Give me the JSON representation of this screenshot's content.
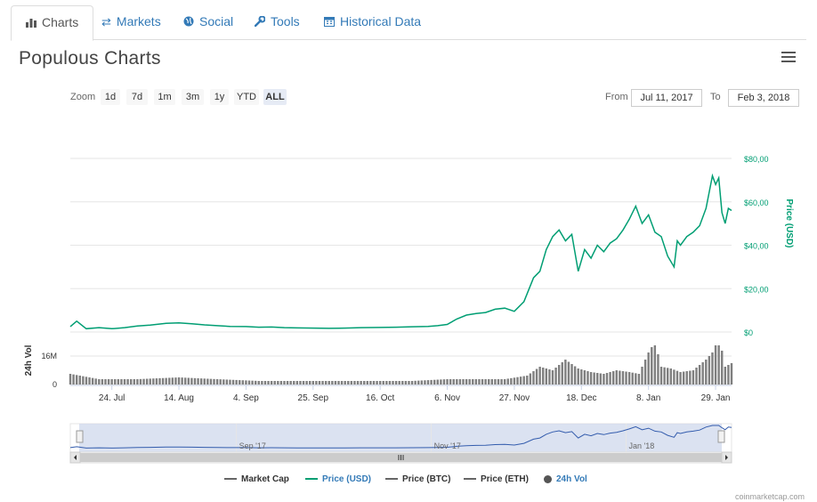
{
  "tabs": [
    {
      "label": "Charts",
      "icon": "bar-chart-icon",
      "active": true
    },
    {
      "label": "Markets",
      "icon": "exchange-arrows-icon",
      "active": false
    },
    {
      "label": "Social",
      "icon": "globe-icon",
      "active": false
    },
    {
      "label": "Tools",
      "icon": "wrench-icon",
      "active": false
    },
    {
      "label": "Historical Data",
      "icon": "calendar-icon",
      "active": false
    }
  ],
  "title": "Populous Charts",
  "zoom": {
    "label": "Zoom",
    "buttons": [
      "1d",
      "7d",
      "1m",
      "3m",
      "1y",
      "YTD",
      "ALL"
    ],
    "selected": "ALL"
  },
  "range": {
    "from_label": "From",
    "from": "Jul 11, 2017",
    "to_label": "To",
    "to": "Feb 3, 2018"
  },
  "legend": [
    {
      "label": "Market Cap",
      "color": "#666666"
    },
    {
      "label": "Price (USD)",
      "color": "#009e73"
    },
    {
      "label": "Price (BTC)",
      "color": "#666666"
    },
    {
      "label": "Price (ETH)",
      "color": "#666666"
    },
    {
      "label": "24h Vol",
      "color": "#337ab7"
    }
  ],
  "credit": "coinmarketcap.com",
  "chart_data": {
    "type": "line",
    "x_ticks": [
      "24. Jul",
      "14. Aug",
      "4. Sep",
      "25. Sep",
      "16. Oct",
      "6. Nov",
      "27. Nov",
      "18. Dec",
      "8. Jan",
      "29. Jan"
    ],
    "y_ticks": [
      "$0",
      "$20,00",
      "$40,00",
      "$60,00",
      "$80,00"
    ],
    "ylabel": "Price (USD)",
    "ylim": [
      0,
      80
    ],
    "vol_label": "24h Vol",
    "vol_ticks": [
      "0",
      "16M"
    ],
    "navigator_labels": [
      "Sep '17",
      "Nov '17",
      "Jan '18"
    ],
    "colors": {
      "price": "#009e73",
      "volume": "#7f7f7f",
      "navigator": "#335cad"
    },
    "series": [
      {
        "name": "Price (USD)",
        "x": [
          "2017-07-11",
          "2017-07-13",
          "2017-07-16",
          "2017-07-20",
          "2017-07-24",
          "2017-07-28",
          "2017-08-01",
          "2017-08-05",
          "2017-08-10",
          "2017-08-14",
          "2017-08-18",
          "2017-08-22",
          "2017-08-26",
          "2017-08-30",
          "2017-09-04",
          "2017-09-08",
          "2017-09-12",
          "2017-09-16",
          "2017-09-20",
          "2017-09-25",
          "2017-09-30",
          "2017-10-05",
          "2017-10-10",
          "2017-10-16",
          "2017-10-21",
          "2017-10-26",
          "2017-10-31",
          "2017-11-03",
          "2017-11-06",
          "2017-11-09",
          "2017-11-12",
          "2017-11-15",
          "2017-11-18",
          "2017-11-21",
          "2017-11-24",
          "2017-11-27",
          "2017-11-30",
          "2017-12-03",
          "2017-12-05",
          "2017-12-07",
          "2017-12-09",
          "2017-12-11",
          "2017-12-13",
          "2017-12-15",
          "2017-12-17",
          "2017-12-19",
          "2017-12-21",
          "2017-12-23",
          "2017-12-25",
          "2017-12-27",
          "2017-12-29",
          "2017-12-31",
          "2018-01-02",
          "2018-01-04",
          "2018-01-06",
          "2018-01-08",
          "2018-01-10",
          "2018-01-12",
          "2018-01-14",
          "2018-01-16",
          "2018-01-17",
          "2018-01-18",
          "2018-01-20",
          "2018-01-22",
          "2018-01-24",
          "2018-01-26",
          "2018-01-28",
          "2018-01-29",
          "2018-01-30",
          "2018-01-31",
          "2018-02-01",
          "2018-02-02",
          "2018-02-03"
        ],
        "values": [
          2.5,
          5.0,
          1.5,
          2.0,
          1.5,
          2.0,
          2.8,
          3.2,
          4.0,
          4.2,
          3.8,
          3.3,
          2.9,
          2.6,
          2.5,
          2.2,
          2.3,
          2.0,
          1.9,
          1.8,
          1.7,
          1.8,
          2.0,
          2.1,
          2.2,
          2.4,
          2.6,
          2.9,
          3.5,
          6.0,
          7.8,
          8.5,
          9.0,
          10.5,
          11.0,
          9.5,
          14.0,
          25.0,
          28.0,
          38.0,
          44.0,
          47.0,
          42.0,
          45.0,
          28.0,
          38.0,
          34.0,
          40.0,
          37.0,
          41.0,
          43.0,
          47.0,
          52.0,
          58.0,
          50.0,
          54.0,
          46.0,
          44.0,
          35.0,
          30.0,
          42.0,
          40.0,
          44.0,
          46.0,
          49.0,
          57.0,
          72.0,
          68.0,
          71.0,
          55.0,
          50.0,
          57.0,
          56.0
        ]
      }
    ],
    "volume": {
      "x": [
        "2017-07-11",
        "2017-07-20",
        "2017-08-01",
        "2017-08-14",
        "2017-08-26",
        "2017-09-08",
        "2017-09-20",
        "2017-10-05",
        "2017-10-16",
        "2017-10-26",
        "2017-11-06",
        "2017-11-15",
        "2017-11-24",
        "2017-12-01",
        "2017-12-05",
        "2017-12-09",
        "2017-12-13",
        "2017-12-17",
        "2017-12-21",
        "2017-12-25",
        "2017-12-29",
        "2018-01-02",
        "2018-01-05",
        "2018-01-08",
        "2018-01-10",
        "2018-01-12",
        "2018-01-15",
        "2018-01-18",
        "2018-01-22",
        "2018-01-26",
        "2018-01-28",
        "2018-01-30",
        "2018-02-01",
        "2018-02-03"
      ],
      "values": [
        6,
        3,
        3,
        4,
        3,
        2,
        2,
        2,
        2,
        2,
        3,
        3,
        3,
        5,
        10,
        8,
        14,
        9,
        7,
        6,
        8,
        7,
        6,
        18,
        24,
        10,
        9,
        7,
        8,
        14,
        18,
        28,
        10,
        12
      ]
    }
  }
}
